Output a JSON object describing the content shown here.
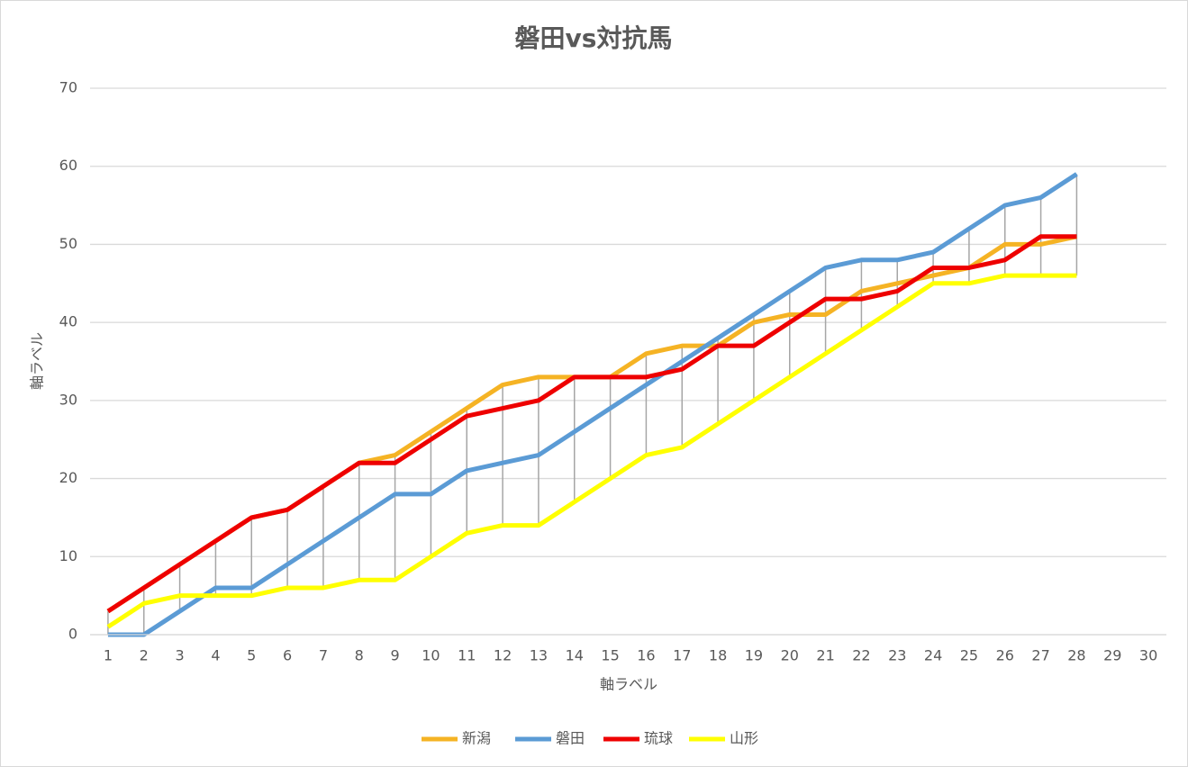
{
  "chart_data": {
    "type": "line",
    "title": "磐田vs対抗馬",
    "x_label": "軸ラベル",
    "y_label": "軸ラベル",
    "categories": [
      "1",
      "2",
      "3",
      "4",
      "5",
      "6",
      "7",
      "8",
      "9",
      "10",
      "11",
      "12",
      "13",
      "14",
      "15",
      "16",
      "17",
      "18",
      "19",
      "20",
      "21",
      "22",
      "23",
      "24",
      "25",
      "26",
      "27",
      "28",
      "29",
      "30"
    ],
    "ylim": [
      0,
      70
    ],
    "yticks": [
      0,
      10,
      20,
      30,
      40,
      50,
      60,
      70
    ],
    "grid": true,
    "high_low_lines": true,
    "legend": "bottom",
    "series": [
      {
        "name": "新潟",
        "color": "#f5b324",
        "values": [
          3,
          6,
          9,
          12,
          15,
          16,
          19,
          22,
          23,
          26,
          29,
          32,
          33,
          33,
          33,
          36,
          37,
          37,
          40,
          41,
          41,
          44,
          45,
          46,
          47,
          50,
          50,
          51,
          null,
          null
        ]
      },
      {
        "name": "磐田",
        "color": "#5b9bd5",
        "values": [
          0,
          0,
          3,
          6,
          6,
          9,
          12,
          15,
          18,
          18,
          21,
          22,
          23,
          26,
          29,
          32,
          35,
          38,
          41,
          44,
          47,
          48,
          48,
          49,
          52,
          55,
          56,
          59,
          null,
          null
        ]
      },
      {
        "name": "琉球",
        "color": "#ee0000",
        "values": [
          3,
          6,
          9,
          12,
          15,
          16,
          19,
          22,
          22,
          25,
          28,
          29,
          30,
          33,
          33,
          33,
          34,
          37,
          37,
          40,
          43,
          43,
          44,
          47,
          47,
          48,
          51,
          51,
          null,
          null
        ]
      },
      {
        "name": "山形",
        "color": "#ffff00",
        "values": [
          1,
          4,
          5,
          5,
          5,
          6,
          6,
          7,
          7,
          10,
          13,
          14,
          14,
          17,
          20,
          23,
          24,
          27,
          30,
          33,
          36,
          39,
          42,
          45,
          45,
          46,
          46,
          46,
          null,
          null
        ]
      }
    ]
  }
}
